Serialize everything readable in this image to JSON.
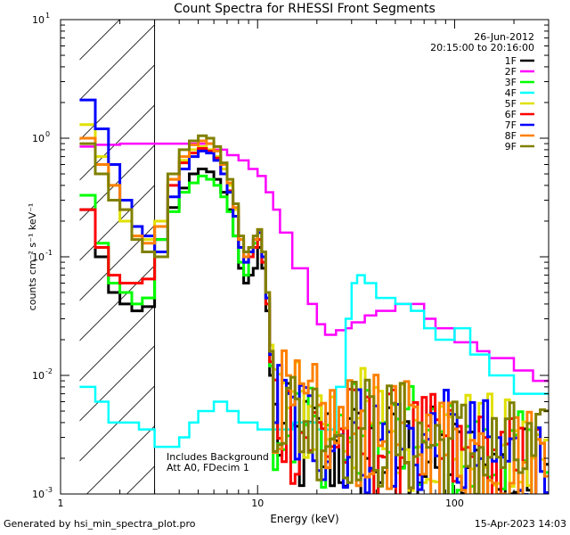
{
  "chart_data": {
    "type": "line",
    "title": "Count Spectra for RHESSI Front Segments",
    "xlabel": "Energy (keV)",
    "ylabel": "counts cm⁻² s⁻¹ keV⁻¹",
    "x_scale": "log",
    "y_scale": "log",
    "xlim": [
      1,
      300
    ],
    "ylim": [
      0.001,
      10
    ],
    "x_ticks": [
      {
        "value": 1,
        "label": "1"
      },
      {
        "value": 10,
        "label": "10"
      },
      {
        "value": 100,
        "label": "100"
      }
    ],
    "y_ticks": [
      {
        "value": 0.001,
        "base": "10",
        "exp": "-3"
      },
      {
        "value": 0.01,
        "base": "10",
        "exp": "-2"
      },
      {
        "value": 0.1,
        "base": "10",
        "exp": "-1"
      },
      {
        "value": 1,
        "base": "10",
        "exp": "0"
      },
      {
        "value": 10,
        "base": "10",
        "exp": "1"
      }
    ],
    "date": "26-Jun-2012",
    "time_range": "20:15:00 to 20:16:00",
    "shaded_region": [
      1.25,
      3.0
    ],
    "annotation": [
      "Includes Background",
      "Att A0, FDecim 1"
    ],
    "series": [
      {
        "name": "1F",
        "color": "#000000",
        "jagged": true,
        "x": [
          1.25,
          1.5,
          1.75,
          2.0,
          2.3,
          2.6,
          3.0,
          3.5,
          4.0,
          4.5,
          5.0,
          5.5,
          6.0,
          6.5,
          7.0,
          7.5,
          8.0,
          8.5,
          9.0,
          9.5,
          10.0,
          10.5,
          11.0,
          11.5,
          12.0,
          13,
          15,
          20,
          30,
          50,
          80,
          120,
          200,
          300
        ],
        "values": [
          0.25,
          0.1,
          0.05,
          0.04,
          0.035,
          0.038,
          0.14,
          0.26,
          0.38,
          0.5,
          0.55,
          0.52,
          0.45,
          0.35,
          0.25,
          0.15,
          0.08,
          0.06,
          0.07,
          0.08,
          0.12,
          0.08,
          0.035,
          0.01,
          0.004,
          0.003,
          0.0025,
          0.0025,
          0.0022,
          0.002,
          0.0018,
          0.0015,
          0.0013,
          0.0012
        ]
      },
      {
        "name": "2F",
        "color": "#ff00ff",
        "jagged": false,
        "x": [
          1.25,
          1.5,
          2.0,
          3.0,
          4.0,
          5.0,
          6.0,
          7.0,
          8.0,
          9.0,
          10.0,
          11.0,
          12.0,
          13.0,
          15.0,
          18.0,
          20.0,
          22.0,
          25.0,
          28.0,
          30.0,
          35.0,
          40.0,
          50.0,
          60.0,
          70.0,
          80.0,
          100.0,
          130.0,
          150.0,
          200.0,
          250.0,
          300.0
        ],
        "values": [
          0.85,
          0.88,
          0.9,
          0.9,
          0.9,
          0.9,
          0.8,
          0.72,
          0.65,
          0.55,
          0.48,
          0.35,
          0.25,
          0.16,
          0.08,
          0.04,
          0.027,
          0.022,
          0.024,
          0.025,
          0.028,
          0.032,
          0.035,
          0.04,
          0.04,
          0.03,
          0.025,
          0.019,
          0.016,
          0.014,
          0.011,
          0.009,
          0.008
        ]
      },
      {
        "name": "3F",
        "color": "#00ff00",
        "jagged": true,
        "x": [
          1.25,
          1.5,
          1.75,
          2.0,
          2.3,
          2.6,
          3.0,
          3.5,
          4.0,
          4.5,
          5.0,
          5.5,
          6.0,
          6.5,
          7.0,
          7.5,
          8.0,
          8.5,
          9.0,
          9.5,
          10.0,
          10.5,
          11.0,
          11.5,
          12.0,
          13,
          15,
          20,
          30,
          50,
          80,
          120,
          200,
          300
        ],
        "values": [
          0.33,
          0.13,
          0.06,
          0.05,
          0.04,
          0.045,
          0.14,
          0.24,
          0.35,
          0.42,
          0.48,
          0.45,
          0.4,
          0.32,
          0.24,
          0.15,
          0.09,
          0.07,
          0.1,
          0.13,
          0.16,
          0.1,
          0.04,
          0.012,
          0.005,
          0.004,
          0.0035,
          0.0035,
          0.003,
          0.0028,
          0.0022,
          0.0018,
          0.0016,
          0.0014
        ]
      },
      {
        "name": "4F",
        "color": "#00ffff",
        "jagged": false,
        "x": [
          1.25,
          1.5,
          1.75,
          2.0,
          2.5,
          3.0,
          3.5,
          4.0,
          4.5,
          5.0,
          5.5,
          6.0,
          7.0,
          8.0,
          9.0,
          10.0,
          12.0,
          15.0,
          20.0,
          25.0,
          28.0,
          30.0,
          32.0,
          35.0,
          40.0,
          50.0,
          60.0,
          70.0,
          80.0,
          100.0,
          120.0,
          150.0,
          200.0,
          300.0
        ],
        "values": [
          0.008,
          0.006,
          0.004,
          0.004,
          0.0035,
          0.0025,
          0.0025,
          0.003,
          0.004,
          0.005,
          0.005,
          0.006,
          0.005,
          0.004,
          0.004,
          0.0035,
          0.0035,
          0.004,
          0.0035,
          0.008,
          0.03,
          0.06,
          0.07,
          0.06,
          0.045,
          0.04,
          0.035,
          0.025,
          0.02,
          0.025,
          0.015,
          0.01,
          0.007,
          0.005
        ]
      },
      {
        "name": "5F",
        "color": "#e0e000",
        "jagged": true,
        "x": [
          1.25,
          1.5,
          1.75,
          2.0,
          2.3,
          2.6,
          3.0,
          3.5,
          4.0,
          4.5,
          5.0,
          5.5,
          6.0,
          6.5,
          7.0,
          7.5,
          8.0,
          8.5,
          9.0,
          9.5,
          10.0,
          10.5,
          11.0,
          11.5,
          12.0,
          13,
          15,
          20,
          30,
          50,
          80,
          120,
          200,
          300
        ],
        "values": [
          1.3,
          0.7,
          0.4,
          0.2,
          0.15,
          0.14,
          0.2,
          0.45,
          0.65,
          0.8,
          0.85,
          0.8,
          0.7,
          0.55,
          0.4,
          0.25,
          0.14,
          0.1,
          0.11,
          0.12,
          0.14,
          0.1,
          0.05,
          0.018,
          0.008,
          0.006,
          0.005,
          0.0045,
          0.004,
          0.0035,
          0.003,
          0.0025,
          0.002,
          0.0018
        ]
      },
      {
        "name": "6F",
        "color": "#ff0000",
        "jagged": true,
        "x": [
          1.25,
          1.5,
          1.75,
          2.0,
          2.3,
          2.6,
          3.0,
          3.5,
          4.0,
          4.5,
          5.0,
          5.5,
          6.0,
          6.5,
          7.0,
          7.5,
          8.0,
          8.5,
          9.0,
          9.5,
          10.0,
          10.5,
          11.0,
          11.5,
          12.0,
          13,
          15,
          20,
          30,
          50,
          80,
          120,
          200,
          300
        ],
        "values": [
          0.25,
          0.12,
          0.07,
          0.06,
          0.06,
          0.065,
          0.18,
          0.4,
          0.62,
          0.75,
          0.82,
          0.78,
          0.68,
          0.5,
          0.36,
          0.22,
          0.12,
          0.09,
          0.1,
          0.12,
          0.14,
          0.09,
          0.04,
          0.013,
          0.006,
          0.0045,
          0.0035,
          0.003,
          0.0028,
          0.0025,
          0.0022,
          0.0018,
          0.0015,
          0.0013
        ]
      },
      {
        "name": "7F",
        "color": "#0000ff",
        "jagged": true,
        "x": [
          1.25,
          1.5,
          1.75,
          2.0,
          2.3,
          2.6,
          3.0,
          3.5,
          4.0,
          4.5,
          5.0,
          5.5,
          6.0,
          6.5,
          7.0,
          7.5,
          8.0,
          8.5,
          9.0,
          9.5,
          10.0,
          10.5,
          11.0,
          11.5,
          12.0,
          13,
          15,
          20,
          30,
          50,
          80,
          120,
          200,
          300
        ],
        "values": [
          2.1,
          1.2,
          0.6,
          0.3,
          0.18,
          0.15,
          0.11,
          0.32,
          0.55,
          0.7,
          0.78,
          0.75,
          0.65,
          0.5,
          0.35,
          0.22,
          0.12,
          0.09,
          0.11,
          0.14,
          0.16,
          0.1,
          0.045,
          0.015,
          0.006,
          0.005,
          0.004,
          0.0035,
          0.003,
          0.0028,
          0.0025,
          0.0022,
          0.0018,
          0.0015
        ]
      },
      {
        "name": "8F",
        "color": "#ff8000",
        "jagged": true,
        "x": [
          1.25,
          1.5,
          1.75,
          2.0,
          2.3,
          2.6,
          3.0,
          3.5,
          4.0,
          4.5,
          5.0,
          5.5,
          6.0,
          6.5,
          7.0,
          7.5,
          8.0,
          8.5,
          9.0,
          9.5,
          10.0,
          10.5,
          11.0,
          11.5,
          12.0,
          13,
          15,
          20,
          30,
          50,
          80,
          120,
          200,
          300
        ],
        "values": [
          1.0,
          0.6,
          0.4,
          0.25,
          0.15,
          0.13,
          0.18,
          0.45,
          0.7,
          0.88,
          0.95,
          0.9,
          0.78,
          0.6,
          0.42,
          0.26,
          0.14,
          0.1,
          0.12,
          0.14,
          0.17,
          0.11,
          0.05,
          0.016,
          0.007,
          0.0055,
          0.0045,
          0.004,
          0.0035,
          0.003,
          0.0027,
          0.0023,
          0.002,
          0.0017
        ]
      },
      {
        "name": "9F",
        "color": "#808000",
        "jagged": true,
        "x": [
          1.25,
          1.5,
          1.75,
          2.0,
          2.3,
          2.6,
          3.0,
          3.5,
          4.0,
          4.5,
          5.0,
          5.5,
          6.0,
          6.5,
          7.0,
          7.5,
          8.0,
          8.5,
          9.0,
          9.5,
          10.0,
          10.5,
          11.0,
          11.5,
          12.0,
          13,
          15,
          20,
          30,
          50,
          80,
          120,
          200,
          300
        ],
        "values": [
          0.9,
          0.5,
          0.3,
          0.25,
          0.14,
          0.11,
          0.1,
          0.5,
          0.8,
          0.95,
          1.05,
          1.0,
          0.85,
          0.62,
          0.45,
          0.28,
          0.15,
          0.11,
          0.12,
          0.15,
          0.17,
          0.11,
          0.05,
          0.016,
          0.007,
          0.0055,
          0.0045,
          0.004,
          0.0035,
          0.003,
          0.0027,
          0.0023,
          0.002,
          0.0017
        ]
      }
    ]
  },
  "footer": {
    "left": "Generated by hsi_min_spectra_plot.pro",
    "right": "15-Apr-2023 14:03"
  }
}
